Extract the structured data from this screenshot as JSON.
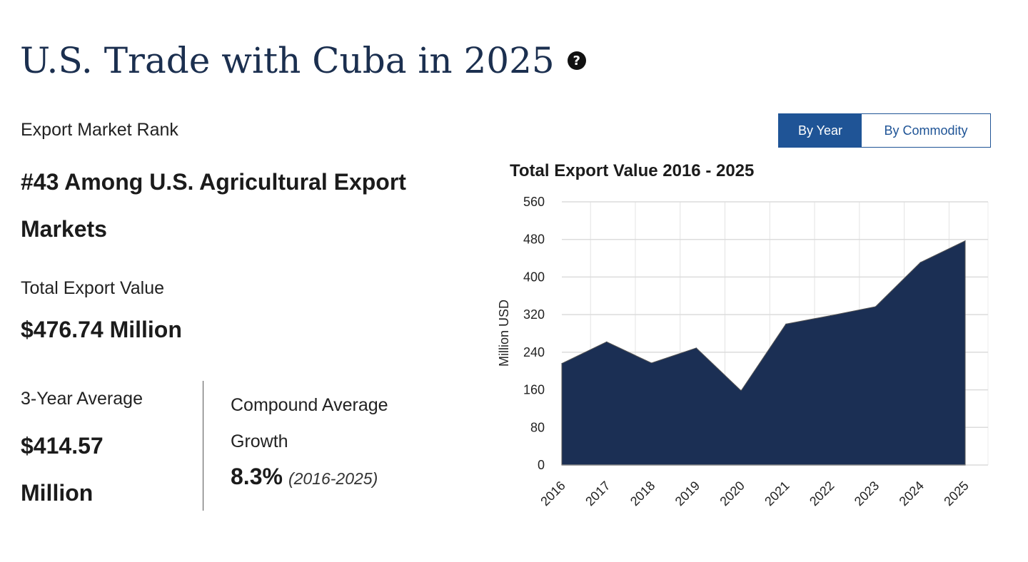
{
  "page": {
    "title": "U.S. Trade with Cuba in 2025",
    "help_icon": "question-circle-icon"
  },
  "rank": {
    "label": "Export Market Rank",
    "value": "#43 Among U.S. Agricultural Export Markets"
  },
  "total": {
    "label": "Total Export Value",
    "value": "$476.74 Million"
  },
  "avg": {
    "label": "3-Year Average",
    "value": "$414.57 Million"
  },
  "growth": {
    "label": "Compound Average Growth",
    "value": "8.3%",
    "period": "(2016-2025)"
  },
  "toggle": {
    "by_year": "By Year",
    "by_commodity": "By Commodity",
    "selected": "By Year"
  },
  "colors": {
    "area": "#1b2f54",
    "accent": "#1f5496",
    "title": "#1b2f4f"
  },
  "chart_data": {
    "type": "area",
    "title": "Total Export Value 2016 - 2025",
    "xlabel": "",
    "ylabel": "Million USD",
    "categories": [
      "2016",
      "2017",
      "2018",
      "2019",
      "2020",
      "2021",
      "2022",
      "2023",
      "2024",
      "2025"
    ],
    "values": [
      216,
      262,
      217,
      249,
      158,
      300,
      318,
      337,
      431,
      477
    ],
    "ylim": [
      0,
      560
    ],
    "yticks": [
      0,
      80,
      160,
      240,
      320,
      400,
      480,
      560
    ],
    "grid": true
  }
}
